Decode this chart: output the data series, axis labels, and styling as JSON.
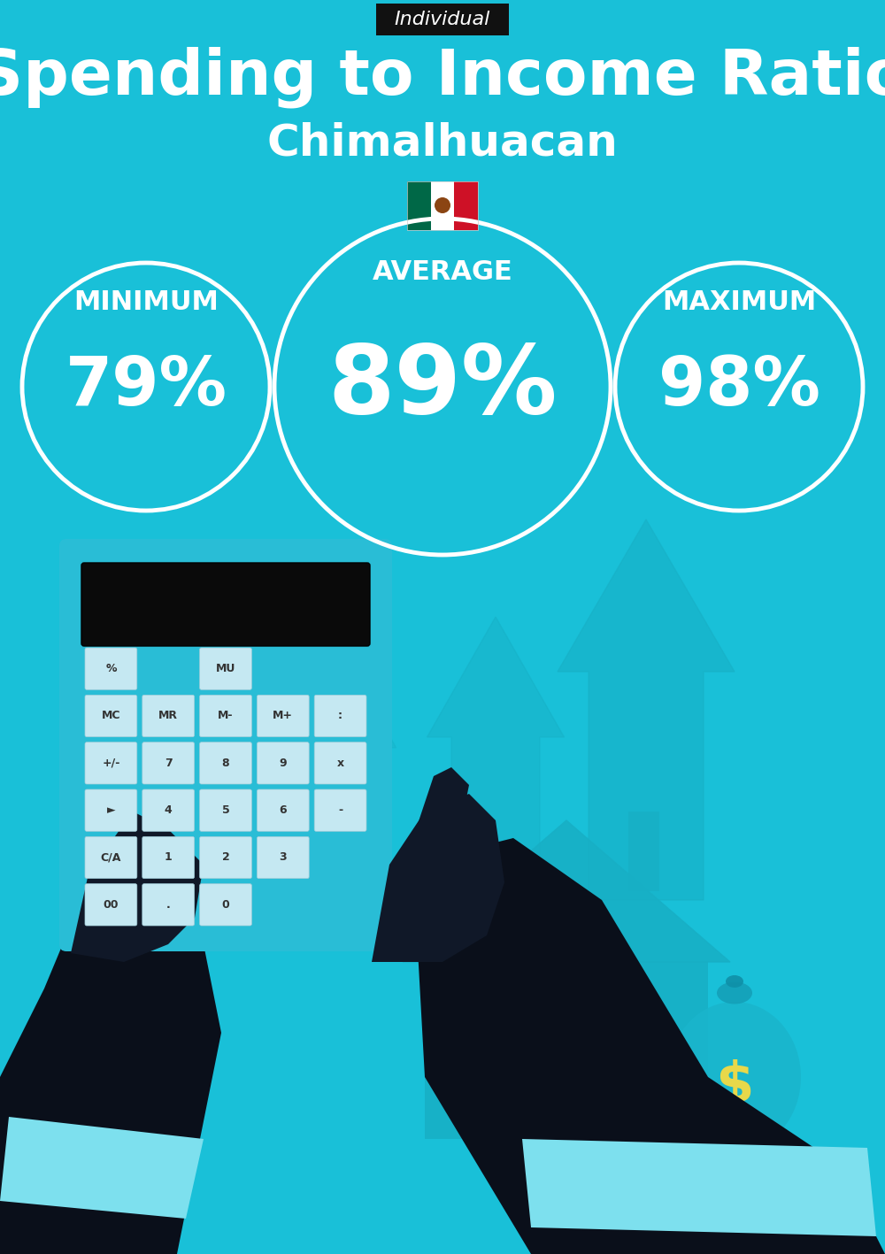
{
  "title": "Spending to Income Ratio",
  "subtitle": "Chimalhuacan",
  "tag": "Individual",
  "bg_color": "#19c0d8",
  "min_label": "MINIMUM",
  "avg_label": "AVERAGE",
  "max_label": "MAXIMUM",
  "min_value": "79%",
  "avg_value": "89%",
  "max_value": "98%",
  "circle_color": "white",
  "text_color": "white",
  "tag_bg": "#111111",
  "tag_text_color": "white",
  "arrow_color": "#17afc5",
  "house_color": "#17afc5",
  "calc_body_color": "#29bdd6",
  "calc_screen_color": "#0a0a0a",
  "btn_color": "#c5e8f2",
  "hand_color": "#101828",
  "sleeve_color": "#0a0f1a",
  "cuff_color": "#7de0ee",
  "money_color": "#17afc5",
  "dollar_color": "#e8d84a"
}
